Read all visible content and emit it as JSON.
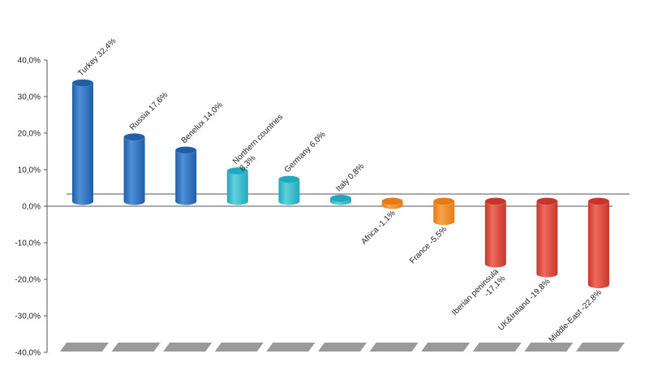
{
  "chart_data": {
    "type": "bar",
    "title": "",
    "xlabel": "",
    "ylabel": "",
    "ylim": [
      -40,
      40
    ],
    "yticks": [
      40,
      30,
      20,
      10,
      0,
      -10,
      -20,
      -30,
      -40
    ],
    "ytick_labels": [
      "40,0%",
      "30,0%",
      "20,0%",
      "10,0%",
      "0,0%",
      "-10,0%",
      "-20,0%",
      "-30,0%",
      "-40,0%"
    ],
    "grid": false,
    "legend": "none",
    "categories": [
      "Turkey",
      "Russia",
      "Benelux",
      "Northern countries",
      "Germany",
      "Italy",
      "Africa",
      "France",
      "Iberian peninsula",
      "UK&Ireland",
      "Middle-East"
    ],
    "values": [
      32.4,
      17.6,
      14.0,
      8.3,
      6.0,
      0.8,
      -1.1,
      -5.5,
      -17.1,
      -19.8,
      -22.8
    ],
    "data_labels": [
      [
        "Turkey 32,4%"
      ],
      [
        "Russia 17,6%"
      ],
      [
        "Benelux 14,0%"
      ],
      [
        "Northern countries",
        "8,3%"
      ],
      [
        "Germany 6,0%"
      ],
      [
        "Italy 0,8%"
      ],
      [
        "Africa -1,1%"
      ],
      [
        "France -5,5%"
      ],
      [
        "Iberian peninsula",
        "-17,1%"
      ],
      [
        "UK&Ireland -19,8%"
      ],
      [
        "Middle-East -22,8%"
      ]
    ],
    "bar_colors": [
      "#1f5fa8",
      "#1f5fa8",
      "#1f5fa8",
      "#20a9bd",
      "#20a9bd",
      "#20a9bd",
      "#e87a14",
      "#e87a14",
      "#c8362b",
      "#c8362b",
      "#c8362b"
    ],
    "bar_highlight_colors": [
      "#4f8fd6",
      "#4f8fd6",
      "#4f8fd6",
      "#5fd0de",
      "#5fd0de",
      "#5fd0de",
      "#f6a44c",
      "#f6a44c",
      "#ef6a5e",
      "#ef6a5e",
      "#ef6a5e"
    ],
    "axis_color": "#555555",
    "shadow_color": "#9a9a9a"
  }
}
